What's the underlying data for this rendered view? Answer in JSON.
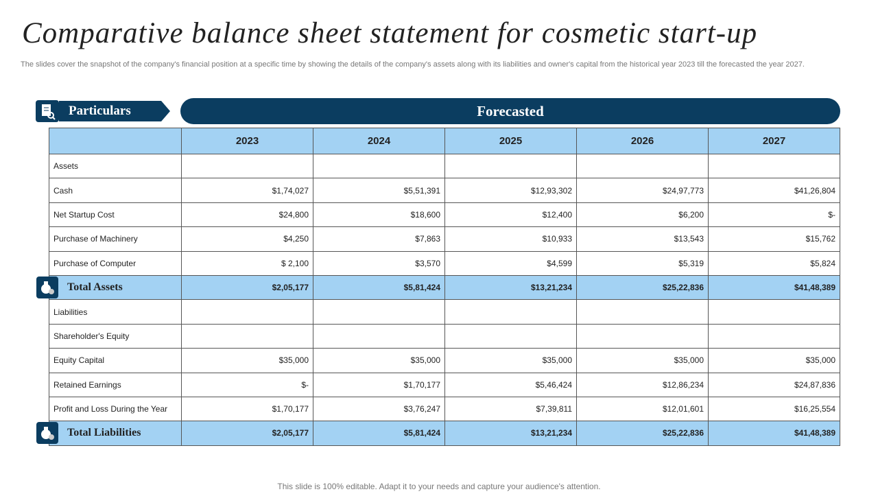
{
  "title": "Comparative balance sheet statement for cosmetic start-up",
  "subtitle": "The slides cover the snapshot of the company's financial position at a specific time by showing the details of the company's assets along with its liabilities and owner's capital from the historical year 2023 till the forecasted the year 2027.",
  "particulars_label": "Particulars",
  "forecasted_label": "Forecasted",
  "table": {
    "columns": [
      "2023",
      "2024",
      "2025",
      "2026",
      "2027"
    ],
    "rows": [
      {
        "label": "Assets"
      },
      {
        "label": "Cash",
        "cells": [
          "$1,74,027",
          "$5,51,391",
          "$12,93,302",
          "$24,97,773",
          "$41,26,804"
        ]
      },
      {
        "label": "Net Startup Cost",
        "cells": [
          "$24,800",
          "$18,600",
          "$12,400",
          "$6,200",
          "$-"
        ]
      },
      {
        "label": "Purchase of Machinery",
        "cells": [
          "$4,250",
          "$7,863",
          "$10,933",
          "$13,543",
          "$15,762"
        ]
      },
      {
        "label": "Purchase of Computer",
        "cells": [
          "$ 2,100",
          "$3,570",
          "$4,599",
          "$5,319",
          "$5,824"
        ]
      },
      {
        "label": "Total Assets",
        "total": true,
        "cells": [
          "$2,05,177",
          "$5,81,424",
          "$13,21,234",
          "$25,22,836",
          "$41,48,389"
        ]
      },
      {
        "label": "Liabilities"
      },
      {
        "label": "Shareholder's Equity"
      },
      {
        "label": "Equity Capital",
        "cells": [
          "$35,000",
          "$35,000",
          "$35,000",
          "$35,000",
          "$35,000"
        ]
      },
      {
        "label": "Retained Earnings",
        "cells": [
          "$-",
          "$1,70,177",
          "$5,46,424",
          "$12,86,234",
          "$24,87,836"
        ]
      },
      {
        "label": "Profit and Loss During the Year",
        "cells": [
          "$1,70,177",
          "$3,76,247",
          "$7,39,811",
          "$12,01,601",
          "$16,25,554"
        ]
      },
      {
        "label": "Total Liabilities",
        "total": true,
        "cells": [
          "$2,05,177",
          "$5,81,424",
          "$13,21,234",
          "$25,22,836",
          "$41,48,389"
        ]
      }
    ]
  },
  "footer": "This slide is 100% editable. Adapt it to your needs and capture your audience's attention."
}
